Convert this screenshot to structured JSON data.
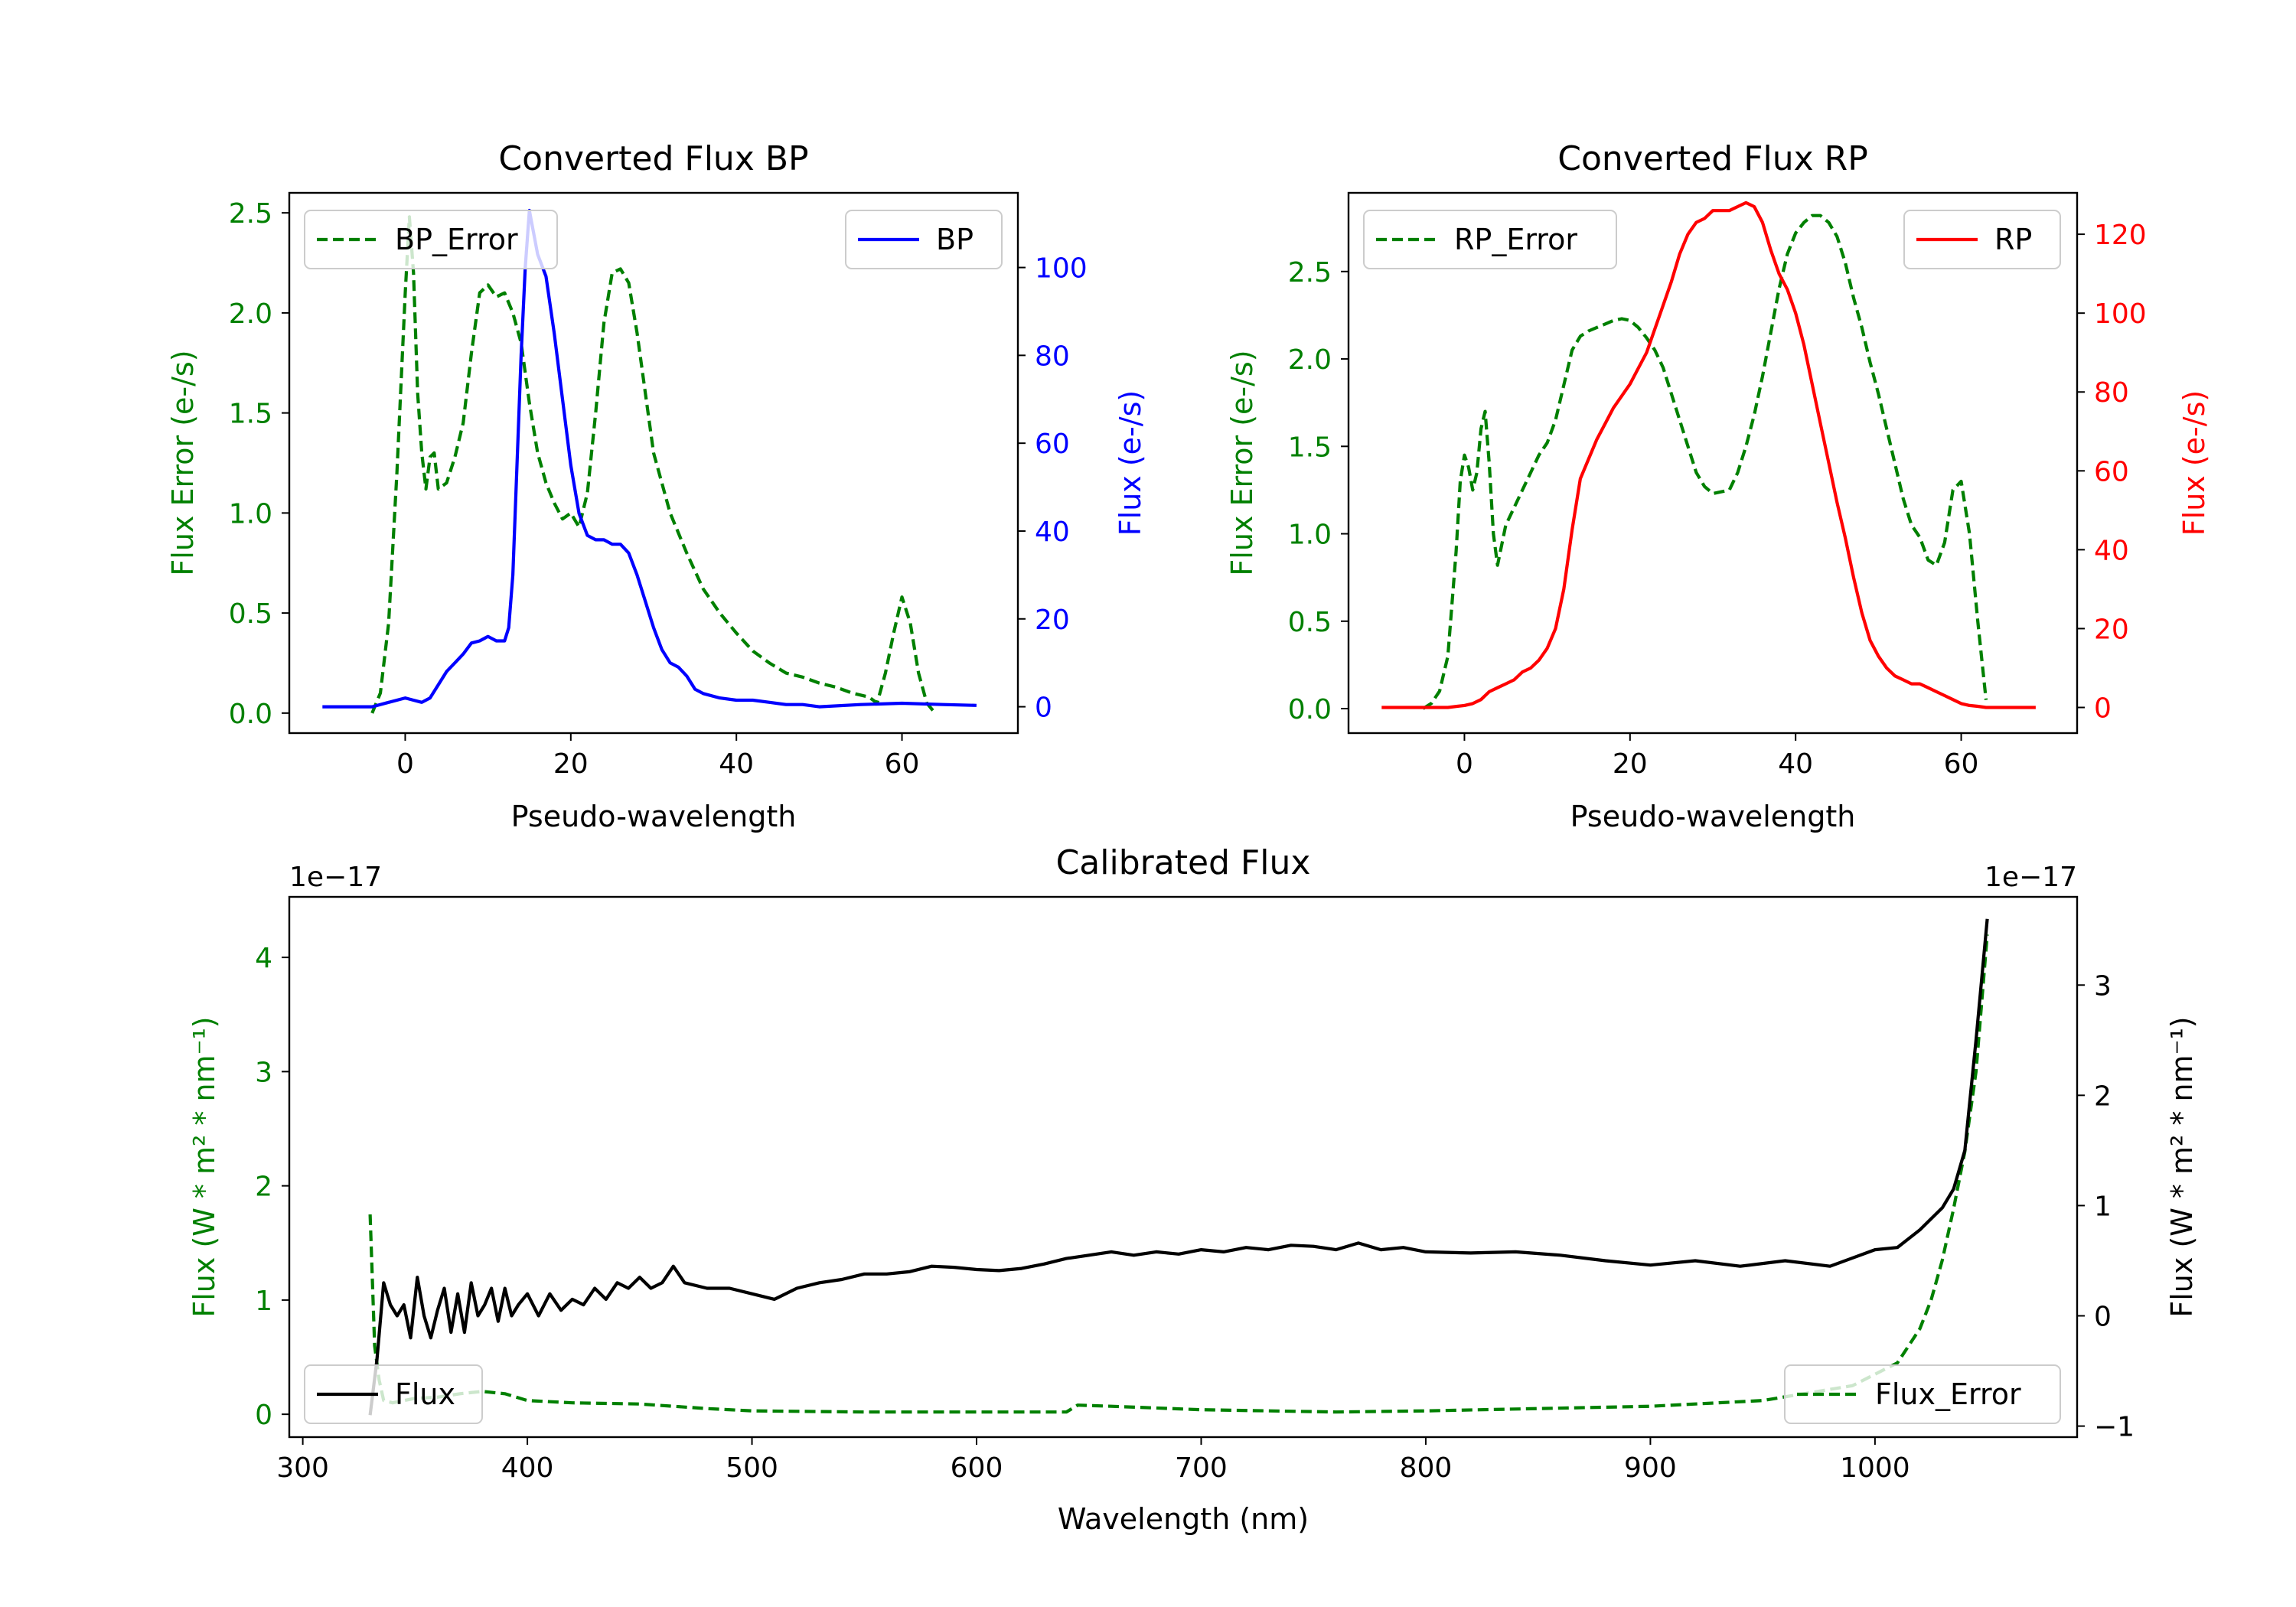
{
  "colors": {
    "green": "#008000",
    "blue": "#0000ff",
    "red": "#ff0000",
    "black": "#000000"
  },
  "chart_data": [
    {
      "id": "bp",
      "type": "line",
      "title": "Converted Flux BP",
      "xlabel": "Pseudo-wavelength",
      "ylabel_left": "Flux Error (e-/s)",
      "ylabel_right": "Flux (e-/s)",
      "xlim": [
        -14,
        74
      ],
      "ylim_left": [
        -0.1,
        2.6
      ],
      "ylim_right": [
        -6,
        117
      ],
      "xticks": [
        0,
        20,
        40,
        60
      ],
      "yticks_left": [
        0.0,
        0.5,
        1.0,
        1.5,
        2.0,
        2.5
      ],
      "yticks_right": [
        0,
        20,
        40,
        60,
        80,
        100
      ],
      "legend_left": "BP_Error",
      "legend_right": "BP",
      "series": [
        {
          "name": "BP_Error",
          "axis": "left",
          "style": "dashed",
          "color": "#008000",
          "x": [
            -4,
            -3,
            -2,
            -1,
            0,
            0.5,
            1,
            1.5,
            2,
            2.5,
            3,
            3.5,
            4,
            5,
            6,
            7,
            8,
            9,
            10,
            11,
            12,
            13,
            14,
            15,
            16,
            17,
            18,
            19,
            20,
            21,
            22,
            23,
            24,
            25,
            26,
            27,
            28,
            29,
            30,
            31,
            32,
            34,
            36,
            38,
            40,
            42,
            44,
            46,
            48,
            50,
            52,
            54,
            56,
            57,
            58,
            59,
            60,
            61,
            62,
            63,
            64
          ],
          "y": [
            0.0,
            0.1,
            0.45,
            1.2,
            2.1,
            2.48,
            2.2,
            1.6,
            1.3,
            1.12,
            1.28,
            1.3,
            1.12,
            1.15,
            1.28,
            1.45,
            1.8,
            2.1,
            2.14,
            2.08,
            2.1,
            2.0,
            1.85,
            1.55,
            1.3,
            1.15,
            1.05,
            0.97,
            1.0,
            0.93,
            1.1,
            1.5,
            1.95,
            2.2,
            2.22,
            2.15,
            1.9,
            1.6,
            1.3,
            1.15,
            1.0,
            0.8,
            0.62,
            0.5,
            0.4,
            0.31,
            0.25,
            0.2,
            0.18,
            0.15,
            0.13,
            0.1,
            0.08,
            0.05,
            0.2,
            0.4,
            0.58,
            0.45,
            0.2,
            0.05,
            0.0
          ]
        },
        {
          "name": "BP",
          "axis": "right",
          "style": "solid",
          "color": "#0000ff",
          "x": [
            -10,
            -4,
            -2,
            0,
            1,
            2,
            3,
            4,
            5,
            6,
            7,
            8,
            9,
            10,
            11,
            12,
            12.5,
            13,
            13.5,
            14,
            14.5,
            15,
            15.5,
            16,
            17,
            18,
            19,
            20,
            21,
            22,
            23,
            24,
            25,
            26,
            27,
            28,
            29,
            30,
            31,
            32,
            33,
            34,
            35,
            36,
            38,
            40,
            42,
            44,
            46,
            48,
            50,
            55,
            60,
            65,
            69
          ],
          "y": [
            0,
            0,
            1,
            2,
            1.5,
            1,
            2,
            5,
            8,
            10,
            12,
            14.5,
            15,
            16,
            15,
            15,
            18,
            30,
            55,
            80,
            100,
            113,
            108,
            103,
            98,
            85,
            70,
            55,
            44,
            39,
            38,
            38,
            37,
            37,
            35,
            30,
            24,
            18,
            13,
            10,
            9,
            7,
            4,
            3,
            2,
            1.5,
            1.5,
            1,
            0.5,
            0.5,
            0,
            0.5,
            0.8,
            0.5,
            0.3
          ]
        }
      ]
    },
    {
      "id": "rp",
      "type": "line",
      "title": "Converted Flux RP",
      "xlabel": "Pseudo-wavelength",
      "ylabel_left": "Flux Error (e-/s)",
      "ylabel_right": "Flux (e-/s)",
      "xlim": [
        -14,
        74
      ],
      "ylim_left": [
        -0.14,
        2.95
      ],
      "ylim_right": [
        -6.5,
        130.5
      ],
      "xticks": [
        0,
        20,
        40,
        60
      ],
      "yticks_left": [
        0.0,
        0.5,
        1.0,
        1.5,
        2.0,
        2.5
      ],
      "yticks_right": [
        0,
        20,
        40,
        60,
        80,
        100,
        120
      ],
      "legend_left": "RP_Error",
      "legend_right": "RP",
      "series": [
        {
          "name": "RP_Error",
          "axis": "left",
          "style": "dashed",
          "color": "#008000",
          "x": [
            -5,
            -4,
            -3,
            -2,
            -1,
            -0.5,
            0,
            0.5,
            1,
            1.5,
            2,
            2.5,
            3,
            3.5,
            4,
            5,
            6,
            7,
            8,
            9,
            10,
            11,
            12,
            13,
            14,
            15,
            16,
            17,
            18,
            19,
            20,
            21,
            22,
            23,
            24,
            25,
            26,
            27,
            28,
            29,
            30,
            31,
            32,
            33,
            34,
            35,
            36,
            37,
            38,
            39,
            40,
            41,
            42,
            43,
            44,
            45,
            46,
            47,
            48,
            49,
            50,
            51,
            52,
            53,
            54,
            55,
            56,
            57,
            58,
            59,
            60,
            61,
            62,
            63
          ],
          "y": [
            0.0,
            0.03,
            0.1,
            0.3,
            0.9,
            1.3,
            1.45,
            1.38,
            1.25,
            1.35,
            1.6,
            1.7,
            1.4,
            1.0,
            0.82,
            1.05,
            1.15,
            1.25,
            1.35,
            1.45,
            1.52,
            1.65,
            1.85,
            2.05,
            2.13,
            2.16,
            2.18,
            2.2,
            2.22,
            2.23,
            2.22,
            2.18,
            2.12,
            2.05,
            1.95,
            1.8,
            1.65,
            1.5,
            1.35,
            1.27,
            1.23,
            1.24,
            1.25,
            1.35,
            1.5,
            1.68,
            1.9,
            2.15,
            2.4,
            2.6,
            2.72,
            2.78,
            2.82,
            2.82,
            2.78,
            2.7,
            2.55,
            2.35,
            2.18,
            1.98,
            1.8,
            1.6,
            1.4,
            1.2,
            1.05,
            0.98,
            0.85,
            0.82,
            0.95,
            1.25,
            1.3,
            1.0,
            0.5,
            0.05
          ]
        },
        {
          "name": "RP",
          "axis": "right",
          "style": "solid",
          "color": "#ff0000",
          "x": [
            -10,
            -4,
            -2,
            0,
            1,
            2,
            3,
            4,
            5,
            6,
            7,
            8,
            9,
            10,
            11,
            12,
            13,
            14,
            15,
            16,
            17,
            18,
            19,
            20,
            21,
            22,
            23,
            24,
            25,
            26,
            27,
            28,
            29,
            30,
            31,
            32,
            33,
            34,
            35,
            36,
            37,
            38,
            39,
            40,
            41,
            42,
            43,
            44,
            45,
            46,
            47,
            48,
            49,
            50,
            51,
            52,
            53,
            54,
            55,
            56,
            57,
            58,
            59,
            60,
            61,
            62,
            63,
            65,
            69
          ],
          "y": [
            0,
            0,
            0,
            0.5,
            1,
            2,
            4,
            5,
            6,
            7,
            9,
            10,
            12,
            15,
            20,
            30,
            45,
            58,
            63,
            68,
            72,
            76,
            79,
            82,
            86,
            90,
            96,
            102,
            108,
            115,
            120,
            123,
            124,
            126,
            126,
            126,
            127,
            128,
            127,
            123,
            116,
            110,
            106,
            100,
            92,
            82,
            72,
            62,
            52,
            43,
            33,
            24,
            17,
            13,
            10,
            8,
            7,
            6,
            6,
            5,
            4,
            3,
            2,
            1,
            0.5,
            0.3,
            0,
            0,
            0
          ]
        }
      ]
    },
    {
      "id": "cal",
      "type": "line",
      "title": "Calibrated Flux",
      "xlabel": "Wavelength (nm)",
      "ylabel_left": "Flux (W * m² * nm⁻¹)",
      "ylabel_right": "Flux (W * m² * nm⁻¹)",
      "offset_left": "1e−17",
      "offset_right": "1e−17",
      "xlim": [
        294,
        1090
      ],
      "ylim_left": [
        -0.2,
        4.53
      ],
      "ylim_right": [
        -1.1,
        3.8
      ],
      "xticks": [
        300,
        400,
        500,
        600,
        700,
        800,
        900,
        1000
      ],
      "yticks_left": [
        0,
        1,
        2,
        3,
        4
      ],
      "yticks_right": [
        -1,
        0,
        1,
        2,
        3
      ],
      "legend_left": "Flux",
      "legend_right": "Flux_Error",
      "series": [
        {
          "name": "Flux_Error",
          "axis": "left",
          "style": "dashed",
          "color": "#008000",
          "x": [
            330,
            332,
            334,
            336,
            340,
            345,
            350,
            360,
            370,
            380,
            390,
            400,
            420,
            450,
            480,
            500,
            550,
            600,
            640,
            645,
            660,
            700,
            760,
            800,
            850,
            900,
            950,
            990,
            1010,
            1020,
            1025,
            1030,
            1035,
            1040,
            1045,
            1050
          ],
          "y": [
            1.75,
            0.6,
            0.3,
            0.12,
            0.1,
            0.12,
            0.14,
            0.15,
            0.18,
            0.2,
            0.18,
            0.12,
            0.1,
            0.09,
            0.05,
            0.03,
            0.02,
            0.02,
            0.02,
            0.08,
            0.07,
            0.04,
            0.02,
            0.03,
            0.05,
            0.07,
            0.12,
            0.25,
            0.45,
            0.75,
            1.0,
            1.35,
            1.8,
            2.3,
            3.0,
            4.2
          ]
        },
        {
          "name": "Flux",
          "axis": "right",
          "style": "solid",
          "color": "#000000",
          "x": [
            330,
            333,
            336,
            339,
            342,
            345,
            348,
            351,
            354,
            357,
            360,
            363,
            366,
            369,
            372,
            375,
            378,
            381,
            384,
            387,
            390,
            393,
            396,
            400,
            405,
            410,
            415,
            420,
            425,
            430,
            435,
            440,
            445,
            450,
            455,
            460,
            465,
            470,
            480,
            490,
            500,
            510,
            520,
            530,
            540,
            550,
            560,
            570,
            580,
            590,
            600,
            610,
            620,
            630,
            640,
            650,
            660,
            670,
            680,
            690,
            700,
            710,
            720,
            730,
            740,
            750,
            760,
            770,
            780,
            790,
            800,
            820,
            840,
            860,
            880,
            900,
            920,
            940,
            960,
            980,
            1000,
            1010,
            1020,
            1030,
            1035,
            1040,
            1045,
            1050
          ],
          "y": [
            -0.9,
            -0.4,
            0.3,
            0.1,
            0.0,
            0.1,
            -0.2,
            0.35,
            0.0,
            -0.2,
            0.05,
            0.25,
            -0.15,
            0.2,
            -0.15,
            0.3,
            0.0,
            0.1,
            0.25,
            -0.05,
            0.25,
            0.0,
            0.1,
            0.2,
            0.0,
            0.2,
            0.05,
            0.15,
            0.1,
            0.25,
            0.15,
            0.3,
            0.25,
            0.35,
            0.25,
            0.3,
            0.45,
            0.3,
            0.25,
            0.25,
            0.2,
            0.15,
            0.25,
            0.3,
            0.33,
            0.38,
            0.38,
            0.4,
            0.45,
            0.44,
            0.42,
            0.41,
            0.43,
            0.47,
            0.52,
            0.55,
            0.58,
            0.55,
            0.58,
            0.56,
            0.6,
            0.58,
            0.62,
            0.6,
            0.64,
            0.63,
            0.6,
            0.66,
            0.6,
            0.62,
            0.58,
            0.57,
            0.58,
            0.55,
            0.5,
            0.46,
            0.5,
            0.45,
            0.5,
            0.45,
            0.6,
            0.62,
            0.78,
            0.98,
            1.15,
            1.5,
            2.5,
            3.6
          ]
        }
      ]
    }
  ]
}
